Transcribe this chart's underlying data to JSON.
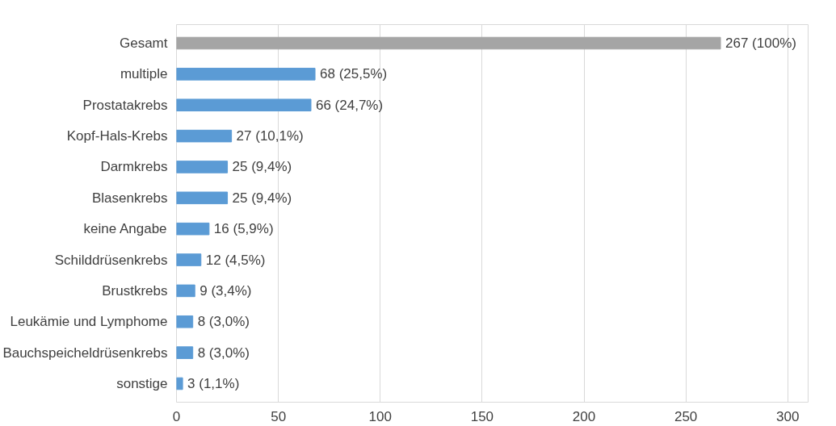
{
  "chart_data": {
    "type": "bar",
    "orientation": "horizontal",
    "categories": [
      "Gesamt",
      "multiple",
      "Prostatakrebs",
      "Kopf-Hals-Krebs",
      "Darmkrebs",
      "Blasenkrebs",
      "keine Angabe",
      "Schilddrüsenkrebs",
      "Brustkrebs",
      "Leukämie und Lymphome",
      "Bauchspeicheldrüsenkrebs",
      "sonstige"
    ],
    "values": [
      267,
      68,
      66,
      27,
      25,
      25,
      16,
      12,
      9,
      8,
      8,
      3
    ],
    "value_labels": [
      "267 (100%)",
      "68 (25,5%)",
      "66 (24,7%)",
      "27 (10,1%)",
      "25 (9,4%)",
      "25 (9,4%)",
      "16 (5,9%)",
      "12 (4,5%)",
      "9 (3,4%)",
      "8 (3,0%)",
      "8 (3,0%)",
      "3 (1,1%)"
    ],
    "colors": [
      "#a5a5a5",
      "#5b9bd5",
      "#5b9bd5",
      "#5b9bd5",
      "#5b9bd5",
      "#5b9bd5",
      "#5b9bd5",
      "#5b9bd5",
      "#5b9bd5",
      "#5b9bd5",
      "#5b9bd5",
      "#5b9bd5"
    ],
    "xlim": [
      0,
      310
    ],
    "xticks": [
      0,
      50,
      100,
      150,
      200,
      250,
      300
    ],
    "grid": "x"
  }
}
